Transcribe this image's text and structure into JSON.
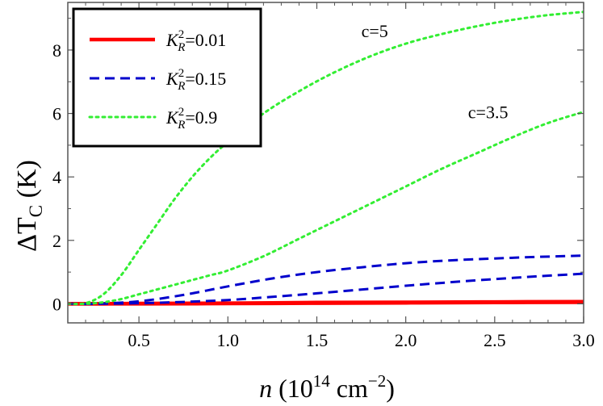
{
  "chart_data": {
    "type": "line",
    "xlabel": {
      "italic": "n",
      "base": " (10",
      "sup": "14",
      "unit": " cm",
      "unitsup": "−2",
      "close": ")"
    },
    "ylabel": {
      "prefix": "ΔT",
      "sub": "C",
      "suffix": " (K)"
    },
    "xlim": [
      0.1,
      3.0
    ],
    "ylim": [
      -0.6,
      9.5
    ],
    "xticks": [
      "0.5",
      "1.0",
      "1.5",
      "2.0",
      "2.5",
      "3.0"
    ],
    "yticks": [
      "0",
      "2",
      "4",
      "6",
      "8"
    ],
    "grid": false,
    "legend_position": "top-left",
    "series": [
      {
        "name": "K_R^2=0.01",
        "legend_label": {
          "k": "K",
          "sup": "2",
          "sub": "R",
          "val": "=0.01"
        },
        "color": "#ff0000",
        "style": "solid",
        "c": "5",
        "x": [
          0.1,
          0.25,
          0.5,
          1.0,
          1.5,
          2.0,
          2.5,
          3.0
        ],
        "y": [
          0.0,
          0.0,
          0.01,
          0.02,
          0.04,
          0.05,
          0.06,
          0.07
        ]
      },
      {
        "name": "K_R^2=0.01",
        "color": "#ff0000",
        "style": "solid",
        "c": "3.5",
        "x": [
          0.1,
          0.25,
          0.5,
          1.0,
          1.5,
          2.0,
          2.5,
          3.0
        ],
        "y": [
          0.0,
          0.0,
          0.0,
          0.01,
          0.02,
          0.03,
          0.04,
          0.05
        ]
      },
      {
        "name": "K_R^2=0.15",
        "legend_label": {
          "k": "K",
          "sup": "2",
          "sub": "R",
          "val": "=0.15"
        },
        "color": "#0000cc",
        "style": "dashed",
        "c": "5",
        "x": [
          0.1,
          0.25,
          0.5,
          0.75,
          1.0,
          1.25,
          1.5,
          1.75,
          2.0,
          2.25,
          2.5,
          2.75,
          3.0
        ],
        "y": [
          0.0,
          0.0,
          0.08,
          0.28,
          0.55,
          0.8,
          1.0,
          1.15,
          1.28,
          1.37,
          1.43,
          1.48,
          1.52
        ]
      },
      {
        "name": "K_R^2=0.15",
        "color": "#0000cc",
        "style": "dashed",
        "c": "3.5",
        "x": [
          0.1,
          0.25,
          0.5,
          0.75,
          1.0,
          1.25,
          1.5,
          1.75,
          2.0,
          2.25,
          2.5,
          2.75,
          3.0
        ],
        "y": [
          0.0,
          0.0,
          0.02,
          0.06,
          0.12,
          0.22,
          0.33,
          0.45,
          0.57,
          0.68,
          0.78,
          0.87,
          0.95
        ]
      },
      {
        "name": "K_R^2=0.9",
        "legend_label": {
          "k": "K",
          "sup": "2",
          "sub": "R",
          "val": "=0.9"
        },
        "color": "#33ee33",
        "style": "dotted",
        "c": "5",
        "x": [
          0.1,
          0.2,
          0.3,
          0.4,
          0.5,
          0.6,
          0.7,
          0.8,
          0.9,
          1.0,
          1.2,
          1.4,
          1.6,
          1.8,
          2.0,
          2.2,
          2.4,
          2.6,
          2.8,
          3.0
        ],
        "y": [
          0.0,
          0.02,
          0.3,
          0.9,
          1.7,
          2.5,
          3.3,
          4.0,
          4.6,
          5.1,
          6.0,
          6.7,
          7.3,
          7.8,
          8.2,
          8.5,
          8.75,
          8.95,
          9.1,
          9.2
        ]
      },
      {
        "name": "K_R^2=0.9",
        "color": "#33ee33",
        "style": "dotted",
        "c": "3.5",
        "x": [
          0.1,
          0.2,
          0.3,
          0.4,
          0.5,
          0.6,
          0.7,
          0.8,
          0.9,
          1.0,
          1.2,
          1.4,
          1.6,
          1.8,
          2.0,
          2.2,
          2.4,
          2.6,
          2.8,
          3.0
        ],
        "y": [
          0.0,
          0.0,
          0.05,
          0.15,
          0.3,
          0.45,
          0.6,
          0.75,
          0.9,
          1.05,
          1.5,
          2.05,
          2.6,
          3.15,
          3.7,
          4.25,
          4.75,
          5.25,
          5.7,
          6.05
        ]
      }
    ],
    "annotations": [
      {
        "text": "c=5",
        "x": 1.75,
        "y": 8.4
      },
      {
        "text": "c=3.5",
        "x": 2.35,
        "y": 5.85
      }
    ]
  }
}
